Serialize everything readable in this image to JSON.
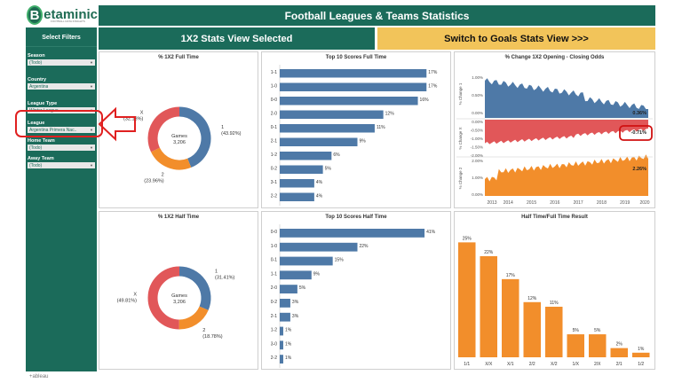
{
  "logo": {
    "text": "Betaminic",
    "letter": "B",
    "subtitle": "FOOTBALL DATA INSIGHTS"
  },
  "header": {
    "title": "Football Leagues & Teams Statistics"
  },
  "buttons": {
    "view_selected": "1X2 Stats View Selected",
    "switch_label": "Switch to Goals Stats View >>>"
  },
  "sidebar": {
    "title": "Select Filters",
    "filters": [
      {
        "label": "Season",
        "value": "(Todo)"
      },
      {
        "label": "Country",
        "value": "Argentina"
      },
      {
        "label": "League Type",
        "value": "Winter League"
      },
      {
        "label": "League",
        "value": "Argentina Primera Nac.."
      },
      {
        "label": "Home Team",
        "value": "(Todo)"
      },
      {
        "label": "Away Team",
        "value": "(Todo)"
      }
    ]
  },
  "panels": {
    "ft_1x2": {
      "title": "% 1X2 Full Time",
      "center_label": "Games",
      "center_value": "3,206",
      "slices": [
        {
          "name": "1",
          "pct": "(43.92%)",
          "value": 43.92,
          "color": "#4e79a7"
        },
        {
          "name": "2",
          "pct": "(23.96%)",
          "value": 23.96,
          "color": "#f28e2b"
        },
        {
          "name": "X",
          "pct": "(32.13%)",
          "value": 32.13,
          "color": "#e15759"
        }
      ]
    },
    "ht_1x2": {
      "title": "% 1X2 Half Time",
      "center_label": "Games",
      "center_value": "3,206",
      "slices": [
        {
          "name": "1",
          "pct": "(31.41%)",
          "value": 31.41,
          "color": "#4e79a7"
        },
        {
          "name": "2",
          "pct": "(18.78%)",
          "value": 18.78,
          "color": "#f28e2b"
        },
        {
          "name": "X",
          "pct": "(49.81%)",
          "value": 49.81,
          "color": "#e15759"
        }
      ]
    },
    "top_ft": {
      "title": "Top 10 Scores Full Time",
      "max": 18,
      "bars": [
        {
          "label": "1-1",
          "value": 17,
          "text": "17%"
        },
        {
          "label": "1-0",
          "value": 17,
          "text": "17%"
        },
        {
          "label": "0-0",
          "value": 16,
          "text": "16%"
        },
        {
          "label": "2-0",
          "value": 12,
          "text": "12%"
        },
        {
          "label": "0-1",
          "value": 11,
          "text": "11%"
        },
        {
          "label": "2-1",
          "value": 9,
          "text": "9%"
        },
        {
          "label": "1-2",
          "value": 6,
          "text": "6%"
        },
        {
          "label": "0-2",
          "value": 5,
          "text": "5%"
        },
        {
          "label": "3-1",
          "value": 4,
          "text": "4%"
        },
        {
          "label": "2-2",
          "value": 4,
          "text": "4%"
        }
      ]
    },
    "top_ht": {
      "title": "Top 10 Scores Half Time",
      "max": 44,
      "bars": [
        {
          "label": "0-0",
          "value": 41,
          "text": "41%"
        },
        {
          "label": "1-0",
          "value": 22,
          "text": "22%"
        },
        {
          "label": "0-1",
          "value": 15,
          "text": "15%"
        },
        {
          "label": "1-1",
          "value": 9,
          "text": "9%"
        },
        {
          "label": "2-0",
          "value": 5,
          "text": "5%"
        },
        {
          "label": "0-2",
          "value": 3,
          "text": "3%"
        },
        {
          "label": "2-1",
          "value": 3,
          "text": "3%"
        },
        {
          "label": "1-2",
          "value": 1,
          "text": "1%"
        },
        {
          "label": "3-0",
          "value": 1,
          "text": "1%"
        },
        {
          "label": "2-2",
          "value": 1,
          "text": "1%"
        }
      ]
    },
    "odds": {
      "title": "% Change 1X2 Opening - Closing Odds",
      "years": [
        "2013",
        "2014",
        "2015",
        "2016",
        "2017",
        "2018",
        "2019",
        "2020"
      ],
      "labels": {
        "c1": "0.36%",
        "cx": "-0.71%",
        "c2": "2.26%"
      },
      "axis": {
        "y1": "% Change 1",
        "yx": "% Change X",
        "y2": "% Change 2"
      },
      "ticks1": [
        "1.00%",
        "0.50%",
        "0.00%"
      ],
      "ticksx": [
        "0.00%",
        "-0.50%",
        "-1.00%",
        "-1.50%",
        "-2.00%"
      ],
      "ticks2": [
        "2.00%",
        "1.00%",
        "0.00%"
      ],
      "colors": {
        "c1": "#4e79a7",
        "cx": "#e15759",
        "c2": "#f28e2b"
      }
    },
    "htft": {
      "title": "Half Time/Full Time Result",
      "max": 27,
      "bars": [
        {
          "label": "1/1",
          "value": 25,
          "text": "25%"
        },
        {
          "label": "X/X",
          "value": 22,
          "text": "22%"
        },
        {
          "label": "X/1",
          "value": 17,
          "text": "17%"
        },
        {
          "label": "2/2",
          "value": 12,
          "text": "12%"
        },
        {
          "label": "X/2",
          "value": 11,
          "text": "11%"
        },
        {
          "label": "1/X",
          "value": 5,
          "text": "5%"
        },
        {
          "label": "2/X",
          "value": 5,
          "text": "5%"
        },
        {
          "label": "2/1",
          "value": 2,
          "text": "2%"
        },
        {
          "label": "1/2",
          "value": 1,
          "text": "1%"
        }
      ]
    }
  },
  "footer": {
    "brand": "+ableau"
  }
}
